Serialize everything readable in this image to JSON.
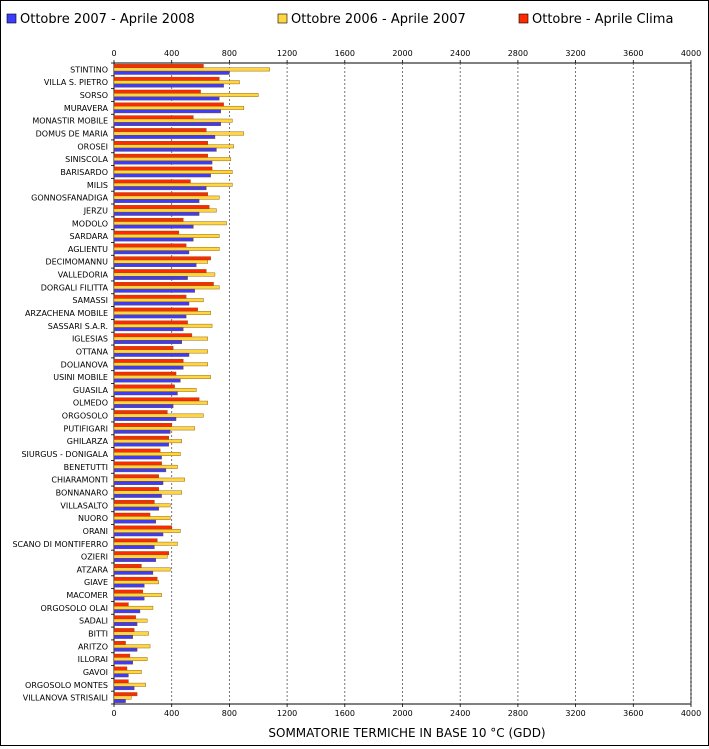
{
  "chart_data": {
    "type": "bar",
    "orientation": "horizontal",
    "xlabel": "SOMMATORIE TERMICHE IN BASE 10 °C (GDD)",
    "xlim": [
      0,
      4000
    ],
    "xticks": [
      0,
      400,
      800,
      1200,
      1600,
      2000,
      2400,
      2800,
      3200,
      3600,
      4000
    ],
    "grid": true,
    "legend": "top",
    "categories": [
      "STINTINO",
      "VILLA S. PIETRO",
      "SORSO",
      "MURAVERA",
      "MONASTIR MOBILE",
      "DOMUS DE MARIA",
      "OROSEI",
      "SINISCOLA",
      "BARISARDO",
      "MILIS",
      "GONNOSFANADIGA",
      "JERZU",
      "MODOLO",
      "SARDARA",
      "AGLIENTU",
      "DECIMOMANNU",
      "VALLEDORIA",
      "DORGALI FILITTA",
      "SAMASSI",
      "ARZACHENA MOBILE",
      "SASSARI S.A.R.",
      "IGLESIAS",
      "OTTANA",
      "DOLIANOVA",
      "USINI MOBILE",
      "GUASILA",
      "OLMEDO",
      "ORGOSOLO",
      "PUTIFIGARI",
      "GHILARZA",
      "SIURGUS - DONIGALA",
      "BENETUTTI",
      "CHIARAMONTI",
      "BONNANARO",
      "VILLASALTO",
      "NUORO",
      "ORANI",
      "SCANO DI MONTIFERRO",
      "OZIERI",
      "ATZARA",
      "GIAVE",
      "MACOMER",
      "ORGOSOLO OLAI",
      "SADALI",
      "BITTI",
      "ARITZO",
      "ILLORAI",
      "GAVOI",
      "ORGOSOLO MONTES",
      "VILLANOVA STRISAILI"
    ],
    "series": [
      {
        "name": "Ottobre - Aprile Clima",
        "color": "#ff2a00",
        "values": [
          620,
          730,
          600,
          760,
          550,
          640,
          650,
          650,
          680,
          530,
          650,
          660,
          480,
          450,
          500,
          670,
          640,
          690,
          500,
          580,
          510,
          540,
          410,
          480,
          430,
          420,
          590,
          370,
          400,
          380,
          320,
          330,
          310,
          310,
          280,
          250,
          400,
          300,
          380,
          190,
          300,
          200,
          100,
          150,
          140,
          80,
          110,
          90,
          100,
          160
        ]
      },
      {
        "name": "Ottobre 2006 - Aprile 2007",
        "color": "#ffd540",
        "values": [
          1080,
          870,
          1000,
          900,
          820,
          900,
          830,
          810,
          820,
          820,
          730,
          710,
          780,
          730,
          730,
          650,
          700,
          730,
          620,
          670,
          680,
          650,
          650,
          650,
          670,
          570,
          650,
          620,
          560,
          470,
          460,
          440,
          490,
          470,
          390,
          390,
          460,
          440,
          370,
          390,
          310,
          330,
          270,
          230,
          240,
          250,
          230,
          190,
          220,
          120
        ]
      },
      {
        "name": "Ottobre 2007 - Aprile 2008",
        "color": "#3c3cff",
        "values": [
          800,
          760,
          730,
          740,
          740,
          700,
          710,
          680,
          670,
          640,
          590,
          590,
          550,
          550,
          520,
          570,
          510,
          560,
          520,
          500,
          480,
          470,
          520,
          480,
          460,
          440,
          410,
          430,
          390,
          380,
          330,
          360,
          340,
          330,
          310,
          290,
          340,
          280,
          290,
          270,
          210,
          210,
          180,
          160,
          130,
          160,
          130,
          100,
          140,
          80
        ]
      }
    ]
  },
  "legend_items": [
    {
      "name": "Ottobre 2007 - Aprile 2008",
      "color": "#3c3cff"
    },
    {
      "name": "Ottobre 2006 - Aprile 2007",
      "color": "#ffd540"
    },
    {
      "name": "Ottobre - Aprile Clima",
      "color": "#ff2a00"
    }
  ]
}
